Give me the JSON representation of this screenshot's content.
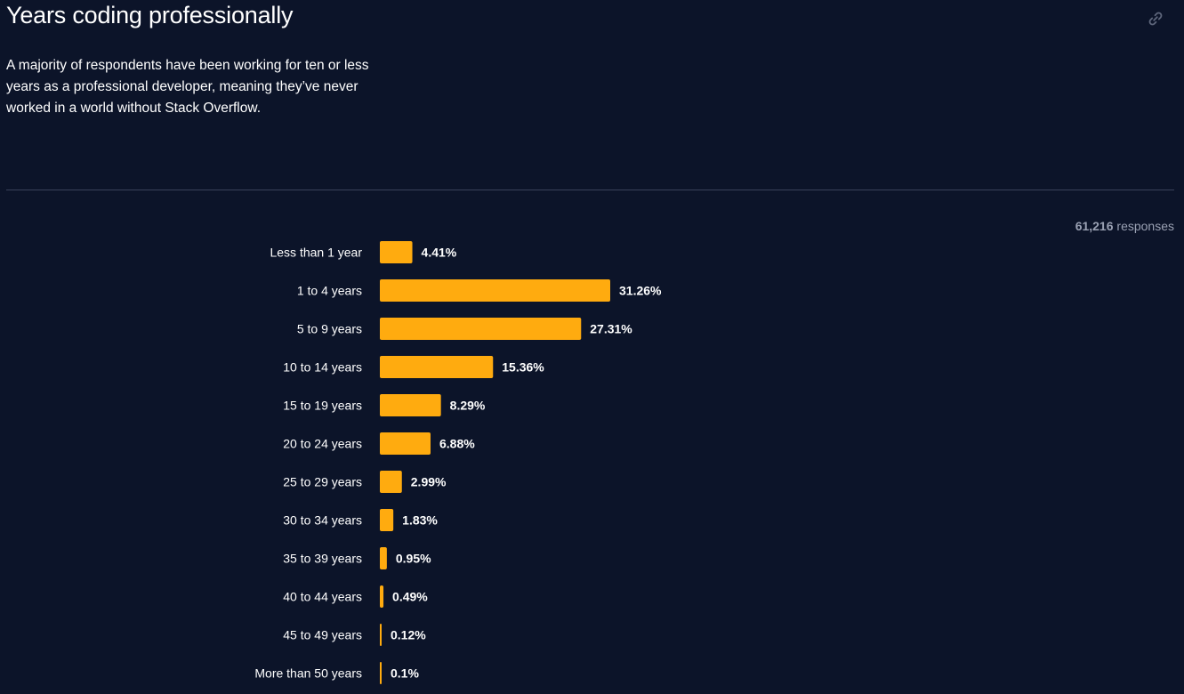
{
  "header": {
    "title": "Years coding professionally",
    "description": "A majority of respondents have been working for ten or less years as a professional developer, meaning they’ve never worked in a world without Stack Overflow.",
    "link_icon": "link-icon"
  },
  "responses": {
    "count": "61,216",
    "label": "responses"
  },
  "colors": {
    "background": "#0c1429",
    "bar": "#ffab0f",
    "text": "#ffffff",
    "muted": "#9aa1b3",
    "divider": "#39415a"
  },
  "chart_data": {
    "type": "bar",
    "orientation": "horizontal",
    "categories": [
      "Less than 1 year",
      "1 to 4 years",
      "5 to 9 years",
      "10 to 14 years",
      "15 to 19 years",
      "20 to 24 years",
      "25 to 29 years",
      "30 to 34 years",
      "35 to 39 years",
      "40 to 44 years",
      "45 to 49 years",
      "More than 50 years"
    ],
    "values": [
      4.41,
      31.26,
      27.31,
      15.36,
      8.29,
      6.88,
      2.99,
      1.83,
      0.95,
      0.49,
      0.12,
      0.1
    ],
    "value_labels": [
      "4.41%",
      "31.26%",
      "27.31%",
      "15.36%",
      "8.29%",
      "6.88%",
      "2.99%",
      "1.83%",
      "0.95%",
      "0.49%",
      "0.12%",
      "0.1%"
    ],
    "unit": "%",
    "grid": false
  }
}
